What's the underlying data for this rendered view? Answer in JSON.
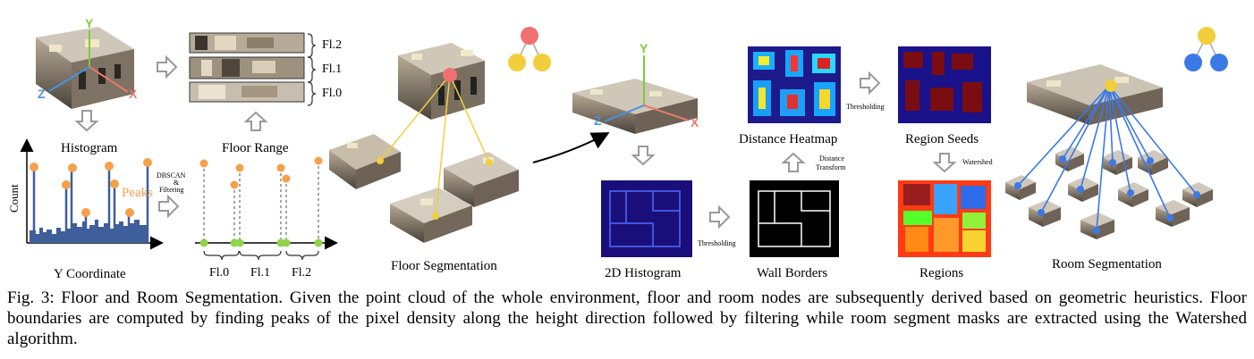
{
  "labels": {
    "histogram": "Histogram",
    "floor_range": "Floor Range",
    "floor_segmentation": "Floor Segmentation",
    "y_coordinate": "Y Coordinate",
    "count": "Count",
    "peaks": "Peaks",
    "dbscan_1": "DBSCAN",
    "dbscan_2": "&",
    "dbscan_3": "Filtering",
    "fl_top": [
      "Fl.2",
      "Fl.1",
      "Fl.0"
    ],
    "fl_bottom": [
      "Fl.0",
      "Fl.1",
      "Fl.2"
    ],
    "distance_heatmap": "Distance Heatmap",
    "region_seeds": "Region Seeds",
    "hist2d": "2D Histogram",
    "wall_borders": "Wall Borders",
    "regions": "Regions",
    "room_segmentation": "Room Segmentation",
    "thresholding_1": "Thresholding",
    "thresholding_2": "Thresholding",
    "distance_transform_1": "Distance",
    "distance_transform_2": "Transform",
    "watershed": "Watershed",
    "axis_y1": "Y",
    "axis_x1": "X",
    "axis_z1": "Z",
    "axis_y2": "Y",
    "axis_x2": "X",
    "axis_z2": "Z"
  },
  "caption": "Fig. 3: Floor and Room Segmentation. Given the point cloud of the whole environment, floor and room nodes are subsequently derived based on geometric heuristics. Floor boundaries are computed by finding peaks of the pixel density along the height direction followed by filtering while room segment masks are extracted using the Watershed algorithm.",
  "colors": {
    "peak": "#f5a04a",
    "hist_bar": "#3f5f9c",
    "green_point": "#8fd44a",
    "floor_node": "#f2ce3c",
    "building_node": "#f07070",
    "room_node": "#3a79e6",
    "arrow_gray": "#9a9a9a"
  }
}
